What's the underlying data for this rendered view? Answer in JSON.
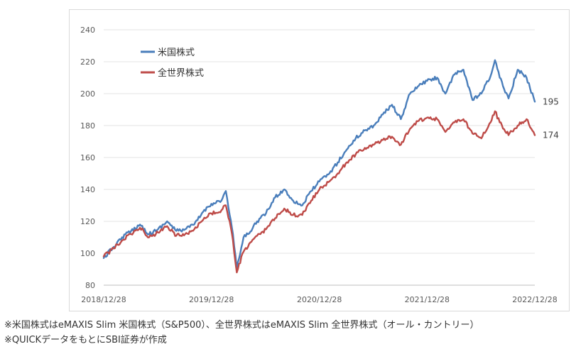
{
  "chart_data": {
    "type": "line",
    "title": "",
    "xlabel": "",
    "ylabel": "",
    "ylim": [
      80,
      240
    ],
    "y_ticks": [
      80,
      100,
      120,
      140,
      160,
      180,
      200,
      220,
      240
    ],
    "x_tick_labels": [
      "2018/12/28",
      "2019/12/28",
      "2020/12/28",
      "2021/12/28",
      "2022/12/28"
    ],
    "grid": "horizontal",
    "legend_position": "top-left",
    "series": [
      {
        "name": "米国株式",
        "color": "#4a7ebb",
        "end_label": "195",
        "x": [
          "2018/12/28",
          "2019/01/31",
          "2019/02/28",
          "2019/03/31",
          "2019/04/30",
          "2019/05/31",
          "2019/06/30",
          "2019/07/31",
          "2019/08/31",
          "2019/09/30",
          "2019/10/31",
          "2019/11/30",
          "2019/12/28",
          "2020/01/31",
          "2020/02/15",
          "2020/02/28",
          "2020/03/10",
          "2020/03/23",
          "2020/04/15",
          "2020/04/30",
          "2020/05/31",
          "2020/06/30",
          "2020/07/31",
          "2020/08/31",
          "2020/09/30",
          "2020/10/31",
          "2020/11/30",
          "2020/12/28",
          "2021/01/31",
          "2021/02/28",
          "2021/03/31",
          "2021/04/30",
          "2021/05/31",
          "2021/06/30",
          "2021/07/31",
          "2021/08/31",
          "2021/09/30",
          "2021/10/31",
          "2021/11/30",
          "2021/12/28",
          "2022/01/31",
          "2022/02/28",
          "2022/03/31",
          "2022/04/30",
          "2022/05/31",
          "2022/06/30",
          "2022/07/31",
          "2022/08/15",
          "2022/08/31",
          "2022/09/30",
          "2022/10/31",
          "2022/11/30",
          "2022/12/28"
        ],
        "values": [
          97,
          104,
          110,
          114,
          118,
          112,
          115,
          120,
          114,
          115,
          118,
          126,
          131,
          133,
          139,
          124,
          112,
          90,
          110,
          112,
          120,
          125,
          135,
          140,
          133,
          130,
          139,
          145,
          150,
          157,
          165,
          172,
          177,
          180,
          187,
          193,
          184,
          200,
          205,
          208,
          210,
          200,
          212,
          215,
          196,
          200,
          211,
          221,
          210,
          197,
          215,
          210,
          195
        ]
      },
      {
        "name": "全世界株式",
        "color": "#be4b48",
        "end_label": "174",
        "x": [
          "2018/12/28",
          "2019/01/31",
          "2019/02/28",
          "2019/03/31",
          "2019/04/30",
          "2019/05/31",
          "2019/06/30",
          "2019/07/31",
          "2019/08/31",
          "2019/09/30",
          "2019/10/31",
          "2019/11/30",
          "2019/12/28",
          "2020/01/31",
          "2020/02/15",
          "2020/02/28",
          "2020/03/10",
          "2020/03/23",
          "2020/04/15",
          "2020/04/30",
          "2020/05/31",
          "2020/06/30",
          "2020/07/31",
          "2020/08/31",
          "2020/09/30",
          "2020/10/31",
          "2020/11/30",
          "2020/12/28",
          "2021/01/31",
          "2021/02/28",
          "2021/03/31",
          "2021/04/30",
          "2021/05/31",
          "2021/06/30",
          "2021/07/31",
          "2021/08/31",
          "2021/09/30",
          "2021/10/31",
          "2021/11/30",
          "2021/12/28",
          "2022/01/31",
          "2022/02/28",
          "2022/03/31",
          "2022/04/30",
          "2022/05/31",
          "2022/06/30",
          "2022/07/31",
          "2022/08/15",
          "2022/08/31",
          "2022/09/30",
          "2022/10/31",
          "2022/11/30",
          "2022/12/28"
        ],
        "values": [
          98,
          103,
          108,
          112,
          116,
          110,
          113,
          117,
          111,
          112,
          115,
          121,
          125,
          127,
          130,
          120,
          108,
          88,
          101,
          104,
          111,
          115,
          122,
          128,
          124,
          124,
          133,
          140,
          145,
          150,
          157,
          162,
          166,
          168,
          171,
          173,
          168,
          178,
          183,
          185,
          184,
          176,
          182,
          184,
          175,
          172,
          182,
          189,
          182,
          174,
          180,
          184,
          174
        ]
      }
    ]
  },
  "notes": {
    "line1": "※米国株式はeMAXIS Slim 米国株式（S&P500）、全世界株式はeMAXIS Slim 全世界株式（オール・カントリー）",
    "line2": "※QUICKデータをもとにSBI証券が作成"
  }
}
